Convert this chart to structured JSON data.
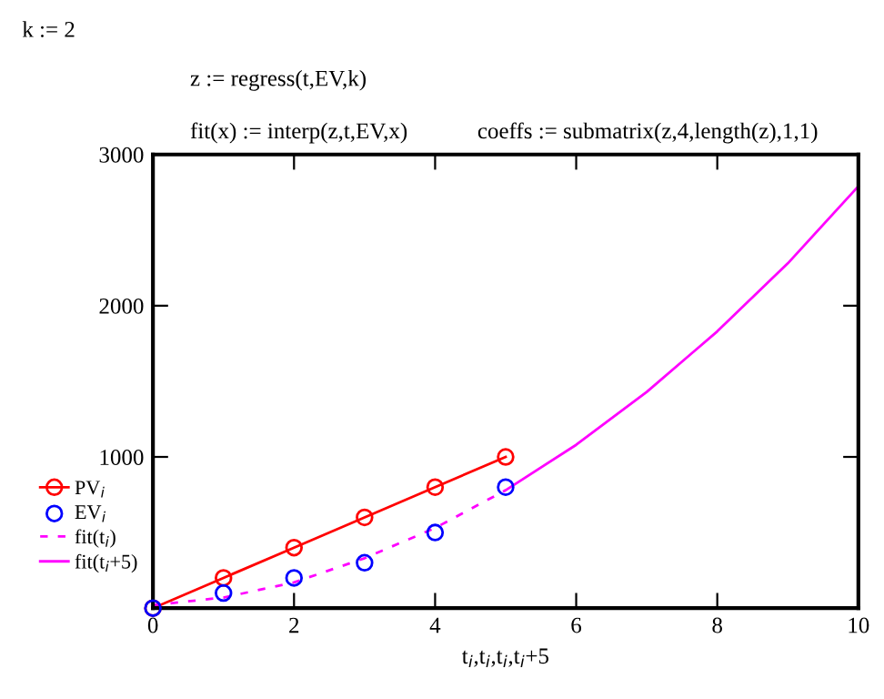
{
  "chart_data": {
    "type": "line",
    "xlabel": "t$_{i}$,t$_{i}$,t$_{i}$,t$_{i}$+5",
    "annotations": [
      "k := 2",
      "z := regress(t,EV,k)",
      "fit(x) := interp(z,t,EV,x)",
      "coeffs := submatrix(z,4,length(z),1,1)"
    ],
    "series": [
      {
        "name": "PV$_{i}$",
        "color": "#ff0000",
        "marker": "circle",
        "line_style": "solid",
        "x": [
          0,
          1,
          2,
          3,
          4,
          5
        ],
        "values": [
          0,
          200,
          400,
          600,
          800,
          1000
        ]
      },
      {
        "name": "EV$_{i}$",
        "type": "scatter",
        "color": "#0000ff",
        "marker": "circle",
        "x": [
          0,
          1,
          2,
          3,
          4,
          5
        ],
        "values": [
          0,
          100,
          200,
          300,
          500,
          800
        ]
      },
      {
        "name": "fit(t$_{i}$)",
        "color": "#ff00ff",
        "line_style": "dashed",
        "x": [
          0,
          1,
          2,
          3,
          4,
          5
        ],
        "values": [
          20,
          70,
          170,
          330,
          530,
          780
        ]
      },
      {
        "name": "fit(t$_{i}$+5)",
        "color": "#ff00ff",
        "line_style": "solid",
        "x": [
          5,
          6,
          7,
          8,
          9,
          10
        ],
        "values": [
          780,
          1080,
          1430,
          1830,
          2280,
          2790
        ]
      }
    ],
    "xlim": [
      0,
      10
    ],
    "ylim": [
      0,
      3000
    ],
    "xticks": [
      0,
      2,
      4,
      6,
      8,
      10
    ],
    "yticks": [
      1000,
      2000,
      3000
    ],
    "legend": "left",
    "grid": false
  }
}
